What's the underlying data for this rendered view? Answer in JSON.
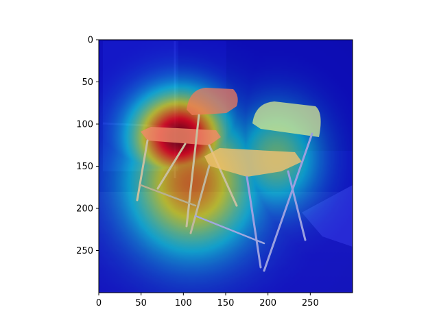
{
  "chart_data": {
    "type": "heatmap",
    "description_kind": "image with attention heatmap overlay",
    "colormap": "jet",
    "xlim": [
      0,
      300
    ],
    "ylim": [
      300,
      0
    ],
    "x_ticks": [
      0,
      50,
      100,
      150,
      200,
      250
    ],
    "y_ticks": [
      0,
      50,
      100,
      150,
      200,
      250
    ],
    "x_tick_labels": [
      "0",
      "50",
      "100",
      "150",
      "200",
      "250"
    ],
    "y_tick_labels": [
      "0",
      "50",
      "100",
      "150",
      "200",
      "250"
    ],
    "hotspots": [
      {
        "x": 95,
        "y": 115,
        "sx": 40,
        "sy": 38,
        "weight": 1.0
      },
      {
        "x": 110,
        "y": 170,
        "sx": 55,
        "sy": 60,
        "weight": 0.72
      },
      {
        "x": 210,
        "y": 140,
        "sx": 38,
        "sy": 45,
        "weight": 0.45
      }
    ],
    "grid": false,
    "title": "",
    "xlabel": "",
    "ylabel": ""
  }
}
